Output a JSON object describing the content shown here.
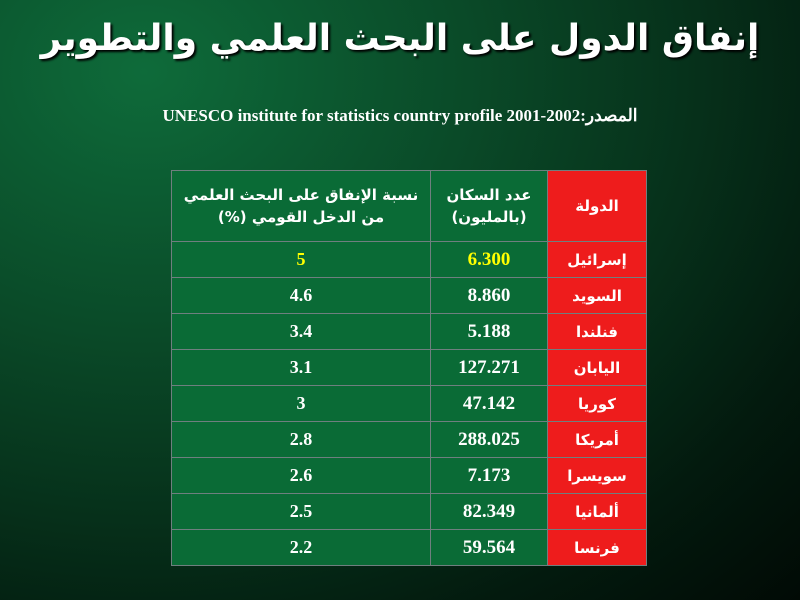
{
  "title": "إنفاق الدول على البحث العلمي والتطوير",
  "source": "المصدر:UNESCO  institute for statistics country profile 2001-2002",
  "table": {
    "headers": {
      "country": "الدولة",
      "population": "عدد السكان (بالمليون)",
      "spending": "نسبة الإنفاق على البحث العلمي من الدخل القومي (%)"
    },
    "rows": [
      {
        "country": "إسرائيل",
        "population": "6.300",
        "spending": "5"
      },
      {
        "country": "السويد",
        "population": "8.860",
        "spending": "4.6"
      },
      {
        "country": "فنلندا",
        "population": "5.188",
        "spending": "3.4"
      },
      {
        "country": "اليابان",
        "population": "127.271",
        "spending": "3.1"
      },
      {
        "country": "كوريا",
        "population": "47.142",
        "spending": "3"
      },
      {
        "country": "أمريكا",
        "population": "288.025",
        "spending": "2.8"
      },
      {
        "country": "سويسرا",
        "population": "7.173",
        "spending": "2.6"
      },
      {
        "country": "ألمانيا",
        "population": "82.349",
        "spending": "2.5"
      },
      {
        "country": "فرنسا",
        "population": "59.564",
        "spending": "2.2"
      }
    ]
  },
  "colors": {
    "country_cell": "#ee1c1c",
    "data_cell": "#0a6b36",
    "highlight_text": "#ffff00"
  }
}
